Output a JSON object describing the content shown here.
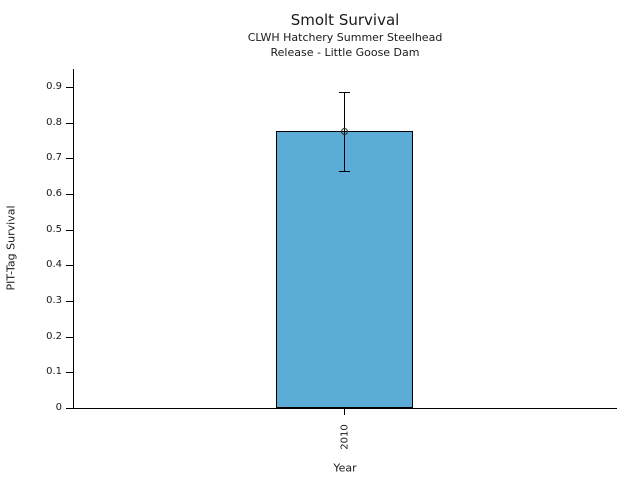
{
  "chart_data": {
    "type": "bar",
    "title": "Smolt Survival",
    "subtitle_line1": "CLWH Hatchery Summer Steelhead",
    "subtitle_line2": "Release - Little Goose Dam",
    "xlabel": "Year",
    "ylabel": "PIT-Tag Survival",
    "categories": [
      "2010"
    ],
    "values": [
      0.775
    ],
    "error_low": [
      0.665
    ],
    "error_high": [
      0.885
    ],
    "yticks": [
      0,
      0.1,
      0.2,
      0.3,
      0.4,
      0.5,
      0.6,
      0.7,
      0.8,
      0.9
    ],
    "ytick_labels": [
      "0",
      "0.1",
      "0.2",
      "0.3",
      "0.4",
      "0.5",
      "0.6",
      "0.7",
      "0.8",
      "0.9"
    ],
    "ylim": [
      0,
      0.95
    ],
    "grid": false,
    "legend": "none",
    "bar_color": "#5BACD6",
    "bar_edge_color": "#000000",
    "error_bar_color": "#000000",
    "marker": "open-circle"
  }
}
